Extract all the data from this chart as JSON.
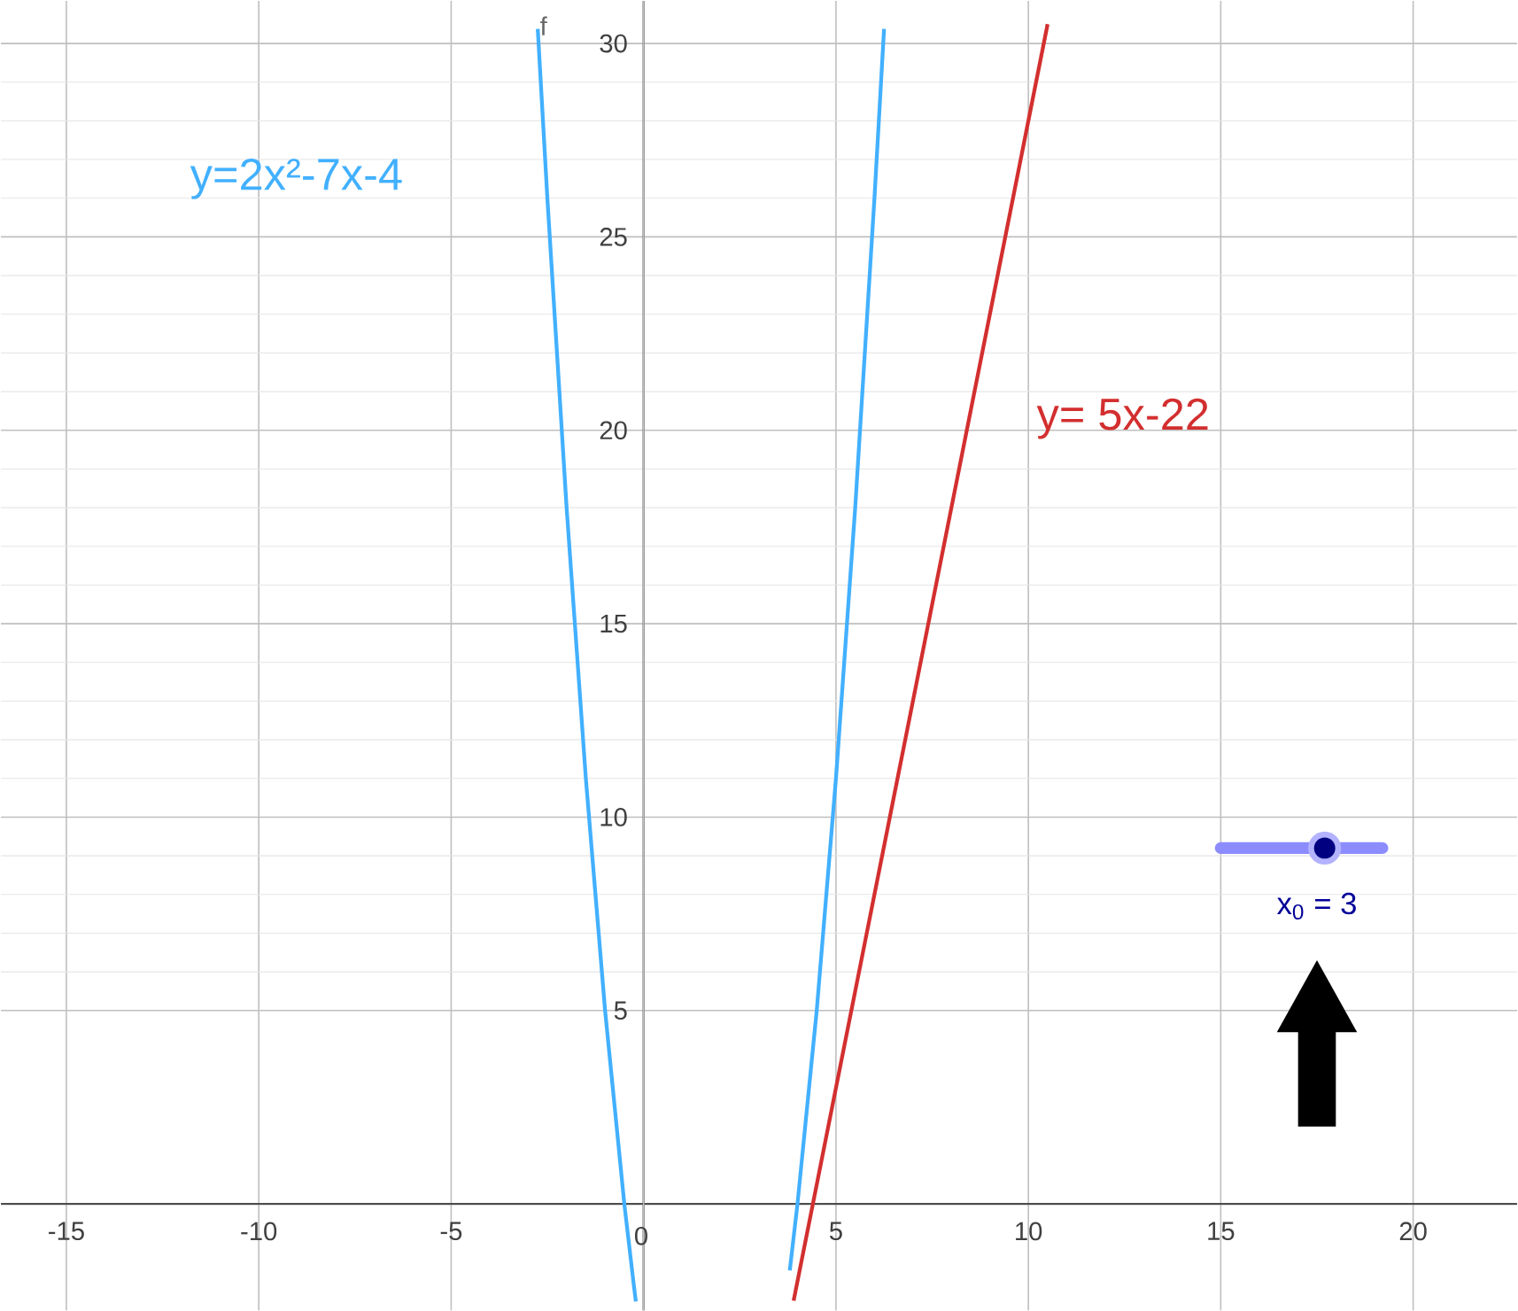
{
  "chart_data": {
    "type": "line",
    "xlim": [
      -16.7,
      22.7
    ],
    "ylim": [
      -2.75,
      31.1
    ],
    "xticks": [
      -15,
      -10,
      -5,
      0,
      5,
      10,
      15,
      20
    ],
    "yticks": [
      5,
      10,
      15,
      20,
      25,
      30
    ],
    "grid": true,
    "series": [
      {
        "name": "y=2x²-7x-4",
        "color": "#42b0ff",
        "x": [
          -2.75,
          -2.5,
          -2,
          -1.5,
          -1,
          -0.5,
          -0.25,
          -0.2,
          1.75,
          3.8,
          4,
          4.5,
          5,
          5.5,
          6,
          6.25
        ],
        "values": [
          30.375,
          26,
          18,
          11,
          5,
          0,
          -2.125,
          -2.52,
          null,
          -1.72,
          0,
          5,
          11,
          18,
          26,
          30.375
        ]
      },
      {
        "name": "y= 5x-22",
        "color": "#d32f2f",
        "x": [
          3.9,
          10.5
        ],
        "values": [
          -2.5,
          30.5
        ]
      }
    ],
    "annotations": [
      {
        "text": "f",
        "x": -2.6,
        "y": 30
      },
      "x$_{0}$ = 3"
    ]
  }
}
